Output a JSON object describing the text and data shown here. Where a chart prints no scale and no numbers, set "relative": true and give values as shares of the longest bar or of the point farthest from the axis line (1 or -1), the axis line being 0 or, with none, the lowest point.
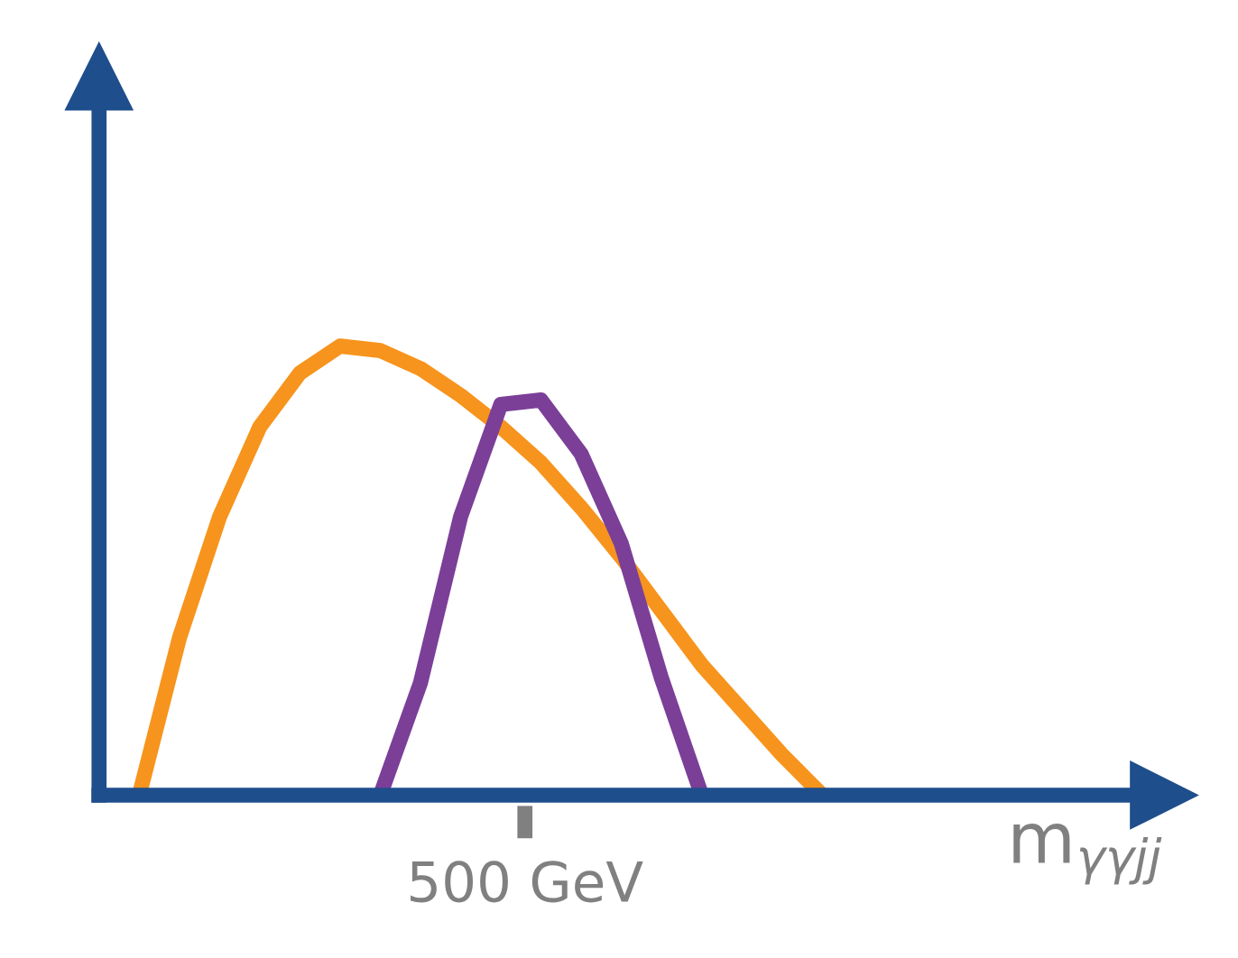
{
  "chart_data": {
    "type": "line",
    "relative": true,
    "xlabel": "m$_{γγjj}$",
    "annotations": [
      "500 GeV"
    ],
    "legend": false,
    "marker": "none",
    "line_style": "solid",
    "categories": [
      null,
      null,
      null,
      null,
      null,
      null,
      null,
      null,
      null,
      null,
      null,
      null,
      null,
      null,
      null,
      null,
      null,
      null,
      null,
      null,
      null,
      null,
      null,
      null,
      null
    ],
    "series": [
      {
        "color": "#f7941d",
        "values": [
          0,
          0.35,
          0.62,
          0.82,
          0.94,
          1.0,
          0.99,
          0.95,
          0.89,
          0.82,
          0.74,
          0.64,
          0.53,
          0.41,
          0.29,
          0.19,
          0.09,
          0,
          null,
          null,
          null,
          null,
          null,
          null,
          null
        ]
      },
      {
        "color": "#7b3f98",
        "values": [
          null,
          null,
          null,
          null,
          null,
          null,
          0,
          0.25,
          0.62,
          0.87,
          0.88,
          0.76,
          0.56,
          0.26,
          0,
          null,
          null,
          null,
          null,
          null,
          null,
          null,
          null,
          null,
          null
        ]
      }
    ]
  }
}
